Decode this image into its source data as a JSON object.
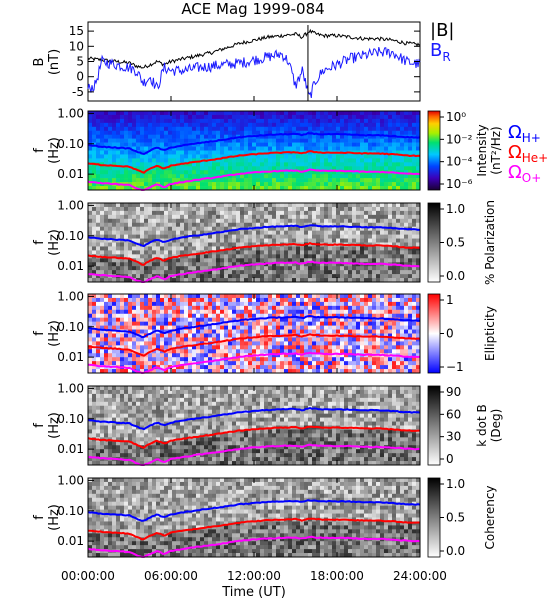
{
  "title": "ACE Mag 1999-084",
  "x_axis": {
    "label": "Time (UT)",
    "ticks": [
      "00:00:00",
      "06:00:00",
      "12:00:00",
      "18:00:00",
      "24:00:00"
    ],
    "tick_hours": [
      0,
      6,
      12,
      18,
      24
    ],
    "range_hours": [
      0,
      24
    ]
  },
  "freq_axis": {
    "label_top": "f",
    "label_bottom": "(Hz)",
    "ticks": [
      "1.00",
      "0.10",
      "0.01"
    ],
    "tick_values": [
      1.0,
      0.1,
      0.01
    ],
    "range": [
      0.003,
      1.2
    ],
    "scale": "log"
  },
  "colors": {
    "B": "#000000",
    "BR": "#1a1aff",
    "H+": "#0000ff",
    "He+": "#ff0000",
    "O+": "#ff00ff"
  },
  "legend": {
    "B_total": "|B|",
    "B_radial_main": "B",
    "B_radial_sub": "R",
    "omega": "Ω",
    "h_sub": "H+",
    "he_sub": "He+",
    "o_sub": "O+"
  },
  "chart_data": [
    {
      "type": "line",
      "panel": "field",
      "ylabel_top": "B",
      "ylabel_bottom": "(nT)",
      "yticks": [
        "15",
        "10",
        "5",
        "0",
        "-5"
      ],
      "ytick_values": [
        15,
        10,
        5,
        0,
        -5
      ],
      "ylim": [
        -8,
        18
      ],
      "series": [
        {
          "name": "|B|",
          "color": "#000000",
          "x": [
            0,
            1,
            2,
            3,
            3.5,
            4,
            4.5,
            5,
            5.5,
            6,
            7,
            8,
            9,
            10,
            11,
            12,
            13,
            14,
            15,
            15.5,
            16,
            16.5,
            17,
            18,
            19,
            20,
            21,
            22,
            23,
            24
          ],
          "y": [
            6,
            5.5,
            5,
            4.5,
            3.5,
            3,
            4,
            5,
            4,
            5,
            6,
            7,
            8,
            9.5,
            11,
            12,
            13,
            13.5,
            14,
            13,
            15,
            14,
            13.5,
            13.5,
            13,
            12.5,
            12.5,
            12,
            11,
            10.5
          ]
        },
        {
          "name": "B_R",
          "color": "#1a1aff",
          "x": [
            0,
            0.5,
            1,
            2,
            3,
            3.5,
            4,
            4.5,
            5,
            5.5,
            6,
            7,
            8,
            9,
            10,
            11,
            12,
            13,
            14,
            14.5,
            15,
            15.5,
            16,
            16.5,
            17,
            18,
            19,
            20,
            21,
            22,
            23,
            24
          ],
          "y": [
            -4,
            -3,
            5,
            4,
            3,
            2,
            -2,
            0,
            -4,
            3,
            2,
            2,
            3,
            3.5,
            4,
            4.5,
            5.5,
            6.5,
            7.5,
            5,
            -3,
            2,
            -7,
            -1,
            2,
            4,
            6,
            7,
            8,
            8,
            5,
            4
          ]
        }
      ]
    },
    {
      "type": "heatmap",
      "panel": "intensity",
      "colorbar_label_top": "Intensity",
      "colorbar_label_bottom": "(nT²/Hz)",
      "colorbar_ticks": [
        "10⁰",
        "10⁻²",
        "10⁻⁴",
        "10⁻⁶"
      ],
      "colorbar_range": [
        -7,
        0.5
      ]
    },
    {
      "type": "heatmap",
      "panel": "polarization",
      "colorbar_label": "% Polarization",
      "colorbar_ticks": [
        "1.0",
        "0.5",
        "0.0"
      ],
      "colorbar_range": [
        0,
        1
      ]
    },
    {
      "type": "heatmap",
      "panel": "ellipticity",
      "colorbar_label": "Ellipticity",
      "colorbar_ticks": [
        "1",
        "0",
        "−1"
      ],
      "colorbar_range": [
        -1,
        1
      ]
    },
    {
      "type": "heatmap",
      "panel": "kdotb",
      "colorbar_label_top": "k dot B",
      "colorbar_label_bottom": "(Deg)",
      "colorbar_ticks": [
        "90",
        "60",
        "30",
        "0"
      ],
      "colorbar_range": [
        0,
        90
      ]
    },
    {
      "type": "heatmap",
      "panel": "coherency",
      "colorbar_label": "Coherency",
      "colorbar_ticks": [
        "1.0",
        "0.5",
        "0.0"
      ],
      "colorbar_range": [
        0,
        1
      ]
    },
    {
      "type": "line",
      "panel": "gyrofrequency_overlays",
      "x": [
        0,
        1,
        2,
        3,
        3.5,
        4,
        4.5,
        5,
        5.5,
        6,
        7,
        8,
        9,
        10,
        11,
        12,
        13,
        14,
        15,
        15.5,
        16,
        16.5,
        17,
        18,
        19,
        20,
        21,
        22,
        23,
        24
      ],
      "series": [
        {
          "name": "H+",
          "color": "#0000ff",
          "y": [
            0.09,
            0.08,
            0.075,
            0.07,
            0.055,
            0.045,
            0.06,
            0.075,
            0.06,
            0.075,
            0.09,
            0.105,
            0.12,
            0.14,
            0.165,
            0.18,
            0.195,
            0.205,
            0.21,
            0.19,
            0.225,
            0.21,
            0.205,
            0.205,
            0.2,
            0.19,
            0.19,
            0.18,
            0.165,
            0.16
          ]
        },
        {
          "name": "He+",
          "color": "#ff0000",
          "y": [
            0.0225,
            0.02,
            0.019,
            0.0175,
            0.014,
            0.011,
            0.015,
            0.019,
            0.015,
            0.019,
            0.0225,
            0.026,
            0.03,
            0.035,
            0.041,
            0.045,
            0.049,
            0.051,
            0.053,
            0.048,
            0.056,
            0.053,
            0.051,
            0.051,
            0.05,
            0.048,
            0.048,
            0.045,
            0.041,
            0.04
          ]
        },
        {
          "name": "O+",
          "color": "#ff00ff",
          "y": [
            0.0056,
            0.005,
            0.0047,
            0.0044,
            0.0034,
            0.0029,
            0.0037,
            0.0047,
            0.0037,
            0.0047,
            0.0056,
            0.0066,
            0.0075,
            0.0088,
            0.0103,
            0.0113,
            0.0122,
            0.0128,
            0.0131,
            0.0119,
            0.014,
            0.0131,
            0.0128,
            0.0128,
            0.0125,
            0.0119,
            0.0119,
            0.0113,
            0.0103,
            0.01
          ]
        }
      ]
    }
  ]
}
